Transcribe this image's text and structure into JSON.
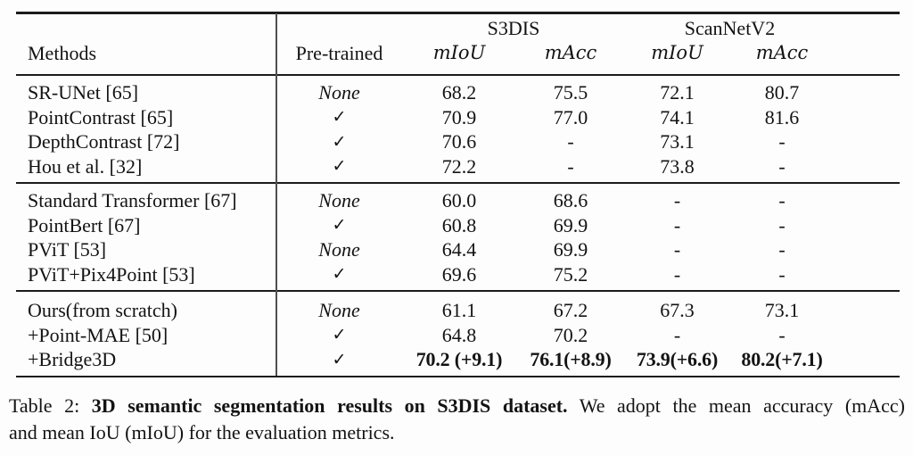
{
  "table": {
    "span_headers": [
      {
        "label": "S3DIS"
      },
      {
        "label": "ScanNetV2"
      }
    ],
    "columns": {
      "methods_label": "Methods",
      "pretrained_label": "Pre-trained",
      "metric_labels": [
        "mIoU",
        "mAcc",
        "mIoU",
        "mAcc"
      ]
    },
    "groups": [
      {
        "rows": [
          {
            "method": "SR-UNet [65]",
            "pretrained": "None",
            "values": [
              "68.2",
              "75.5",
              "72.1",
              "80.7"
            ],
            "bold": false
          },
          {
            "method": "PointContrast [65]",
            "pretrained": "✓",
            "values": [
              "70.9",
              "77.0",
              "74.1",
              "81.6"
            ],
            "bold": false
          },
          {
            "method": "DepthContrast [72]",
            "pretrained": "✓",
            "values": [
              "70.6",
              "-",
              "73.1",
              "-"
            ],
            "bold": false
          },
          {
            "method": "Hou et al. [32]",
            "pretrained": "✓",
            "values": [
              "72.2",
              "-",
              "73.8",
              "-"
            ],
            "bold": false
          }
        ]
      },
      {
        "rows": [
          {
            "method": "Standard Transformer [67]",
            "pretrained": "None",
            "values": [
              "60.0",
              "68.6",
              "-",
              "-"
            ],
            "bold": false
          },
          {
            "method": "PointBert [67]",
            "pretrained": "✓",
            "values": [
              "60.8",
              "69.9",
              "-",
              "-"
            ],
            "bold": false
          },
          {
            "method": "PViT [53]",
            "pretrained": "None",
            "values": [
              "64.4",
              "69.9",
              "-",
              "-"
            ],
            "bold": false
          },
          {
            "method": "PViT+Pix4Point [53]",
            "pretrained": "✓",
            "values": [
              "69.6",
              "75.2",
              "-",
              "-"
            ],
            "bold": false
          }
        ]
      },
      {
        "rows": [
          {
            "method": "Ours(from scratch)",
            "pretrained": "None",
            "values": [
              "61.1",
              "67.2",
              "67.3",
              "73.1"
            ],
            "bold": false
          },
          {
            "method": "+Point-MAE [50]",
            "pretrained": "✓",
            "values": [
              "64.8",
              "70.2",
              "-",
              "-"
            ],
            "bold": false
          },
          {
            "method": "+Bridge3D",
            "pretrained": "✓",
            "values": [
              "70.2 (+9.1)",
              "76.1(+8.9)",
              "73.9(+6.6)",
              "80.2(+7.1)"
            ],
            "bold": true
          }
        ]
      }
    ]
  },
  "caption": {
    "line1_prefix": "Table 2: ",
    "line1_bold": "3D semantic segmentation results on S3DIS dataset.",
    "line1_rest": " We adopt the mean accuracy (mAcc)",
    "line2": "and mean IoU (mIoU) for the evaluation metrics."
  }
}
